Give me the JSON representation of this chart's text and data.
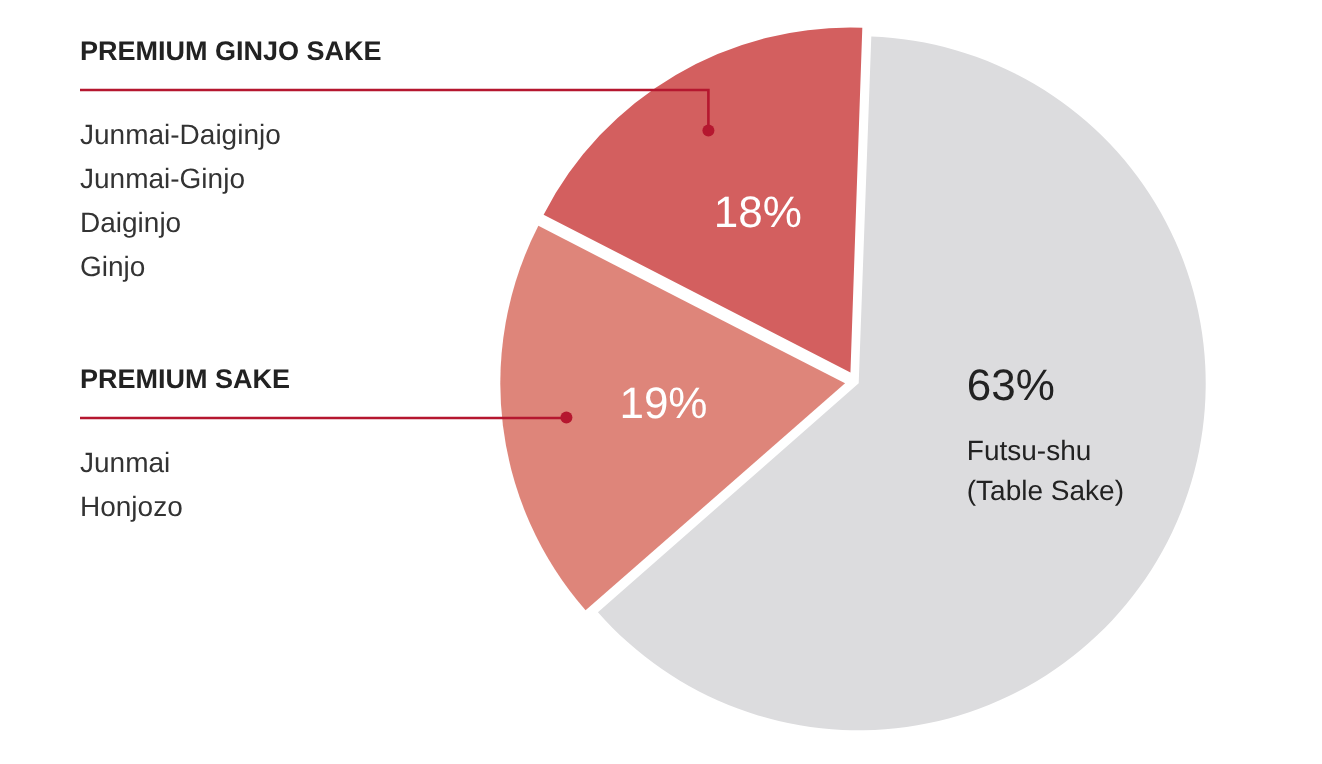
{
  "chart_data": {
    "type": "pie",
    "categories": [
      "Futsu-shu\n(Table Sake)",
      "PREMIUM SAKE",
      "PREMIUM GINJO SAKE"
    ],
    "values": [
      63,
      19,
      18
    ],
    "colors": [
      "#dcdcde",
      "#de857a",
      "#d35f5f"
    ],
    "value_labels": [
      "63%",
      "19%",
      "18%"
    ],
    "annotations": [
      "Junmai-Daiginjo\nJunmai-Ginjo\nDaiginjo\nGinjo",
      "Junmai\nHonjozo"
    ],
    "legend": false
  }
}
